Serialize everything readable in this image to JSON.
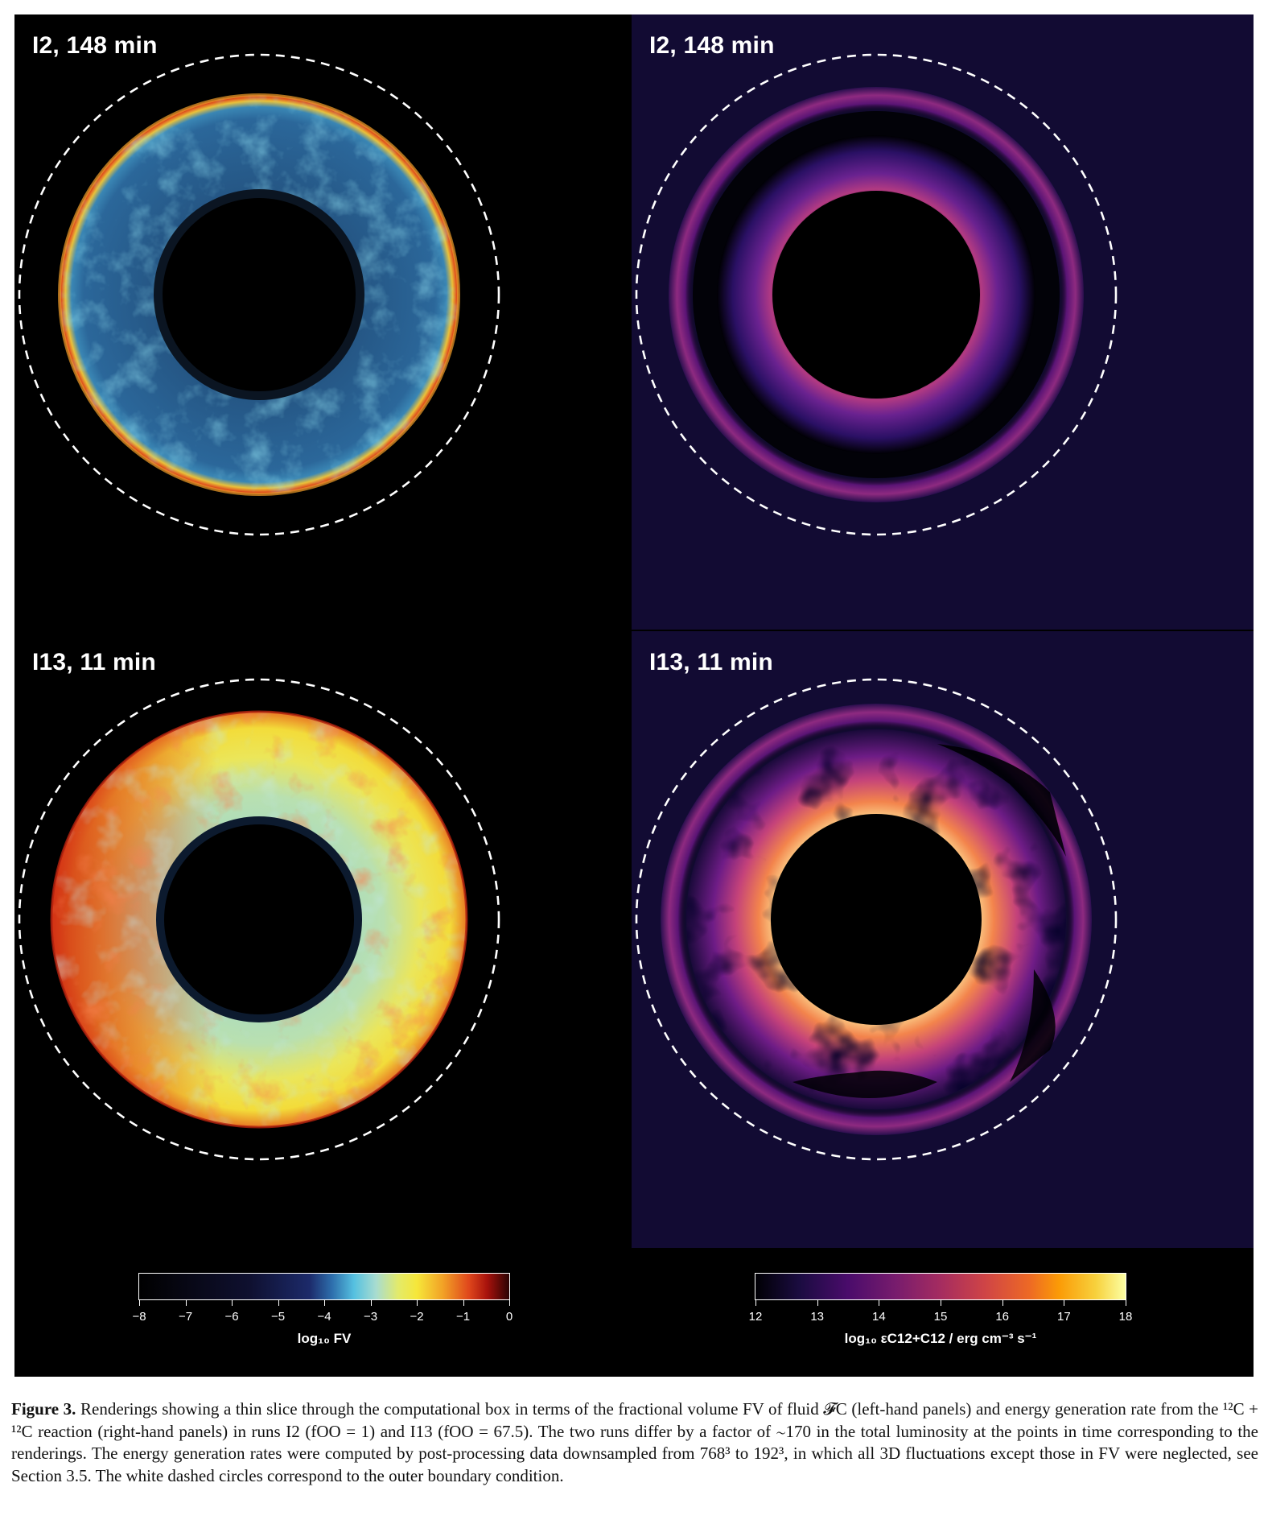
{
  "panels": {
    "top_left": {
      "label": "I2, 148 min"
    },
    "top_right": {
      "label": "I2, 148 min"
    },
    "bottom_left": {
      "label": "I13, 11 min"
    },
    "bottom_right": {
      "label": "I13, 11 min"
    }
  },
  "colorbar_left": {
    "ticks": [
      "−8",
      "−7",
      "−6",
      "−5",
      "−4",
      "−3",
      "−2",
      "−1",
      "0"
    ],
    "title": "log₁₀ FV",
    "colormap": [
      "#000000",
      "#0f1030",
      "#2d6dab",
      "#55c0e0",
      "#f6e73a",
      "#e0481c",
      "#2a0303"
    ]
  },
  "colorbar_right": {
    "ticks": [
      "12",
      "13",
      "14",
      "15",
      "16",
      "17",
      "18"
    ],
    "title": "log₁₀ εC12+C12 / erg cm⁻³ s⁻¹",
    "colormap": [
      "#000004",
      "#4a0c6b",
      "#a52c60",
      "#ed6925",
      "#fcffa4"
    ]
  },
  "caption": {
    "label": "Figure 3.",
    "text": "Renderings showing a thin slice through the computational box in terms of the fractional volume FV of fluid 𝓕C (left-hand panels) and energy generation rate from the ¹²C + ¹²C reaction (right-hand panels) in runs I2 (fOO = 1) and I13 (fOO = 67.5). The two runs differ by a factor of ∼170 in the total luminosity at the points in time corresponding to the renderings. The energy generation rates were computed by post-processing data downsampled from 768³ to 192³, in which all 3D fluctuations except those in FV were neglected, see Section 3.5. The white dashed circles correspond to the outer boundary condition."
  }
}
